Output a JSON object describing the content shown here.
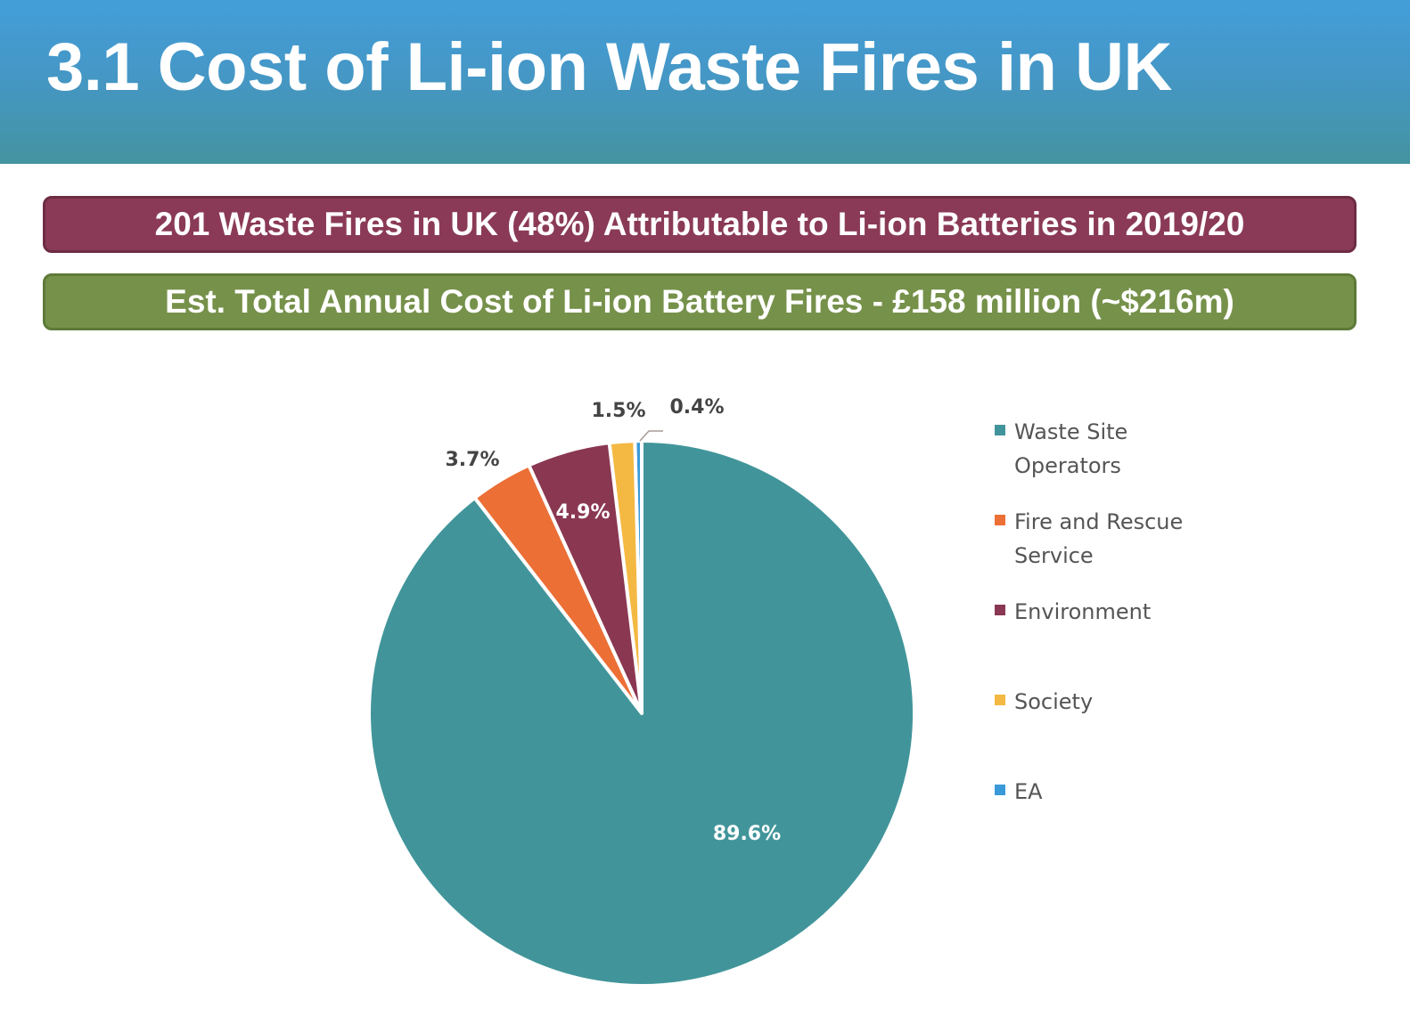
{
  "header": {
    "title": "3.1 Cost of Li-ion Waste Fires in UK"
  },
  "banners": [
    {
      "text": "201 Waste Fires in UK (48%) Attributable to Li-ion Batteries in 2019/20",
      "color": "#8a3a56"
    },
    {
      "text": "Est. Total Annual Cost of Li-ion Battery Fires - £158 million (~$216m)",
      "color": "#76914a"
    }
  ],
  "chart_data": {
    "type": "pie",
    "title": "Est. Total Annual Cost of Li-ion Battery Fires - £158 million (~$216m)",
    "categories": [
      "Waste Site Operators",
      "Fire and Rescue Service",
      "Environment",
      "Society",
      "EA"
    ],
    "values": [
      89.6,
      3.7,
      4.9,
      1.5,
      0.4
    ],
    "labels": [
      "89.6%",
      "3.7%",
      "4.9%",
      "1.5%",
      "0.4%"
    ],
    "colors": [
      "#41959a",
      "#ec6f36",
      "#8a3752",
      "#f4b942",
      "#3a9ad9"
    ],
    "legend_position": "right"
  },
  "legend": {
    "items": [
      {
        "label": "Waste Site Operators",
        "color": "#41959a"
      },
      {
        "label": "Fire and Rescue Service",
        "color": "#ec6f36"
      },
      {
        "label": "Environment",
        "color": "#8a3752"
      },
      {
        "label": "Society",
        "color": "#f4b942"
      },
      {
        "label": "EA",
        "color": "#3a9ad9"
      }
    ]
  },
  "data_labels": {
    "waste": "89.6%",
    "fire": "3.7%",
    "environment": "4.9%",
    "society": "1.5%",
    "ea": "0.4%"
  }
}
